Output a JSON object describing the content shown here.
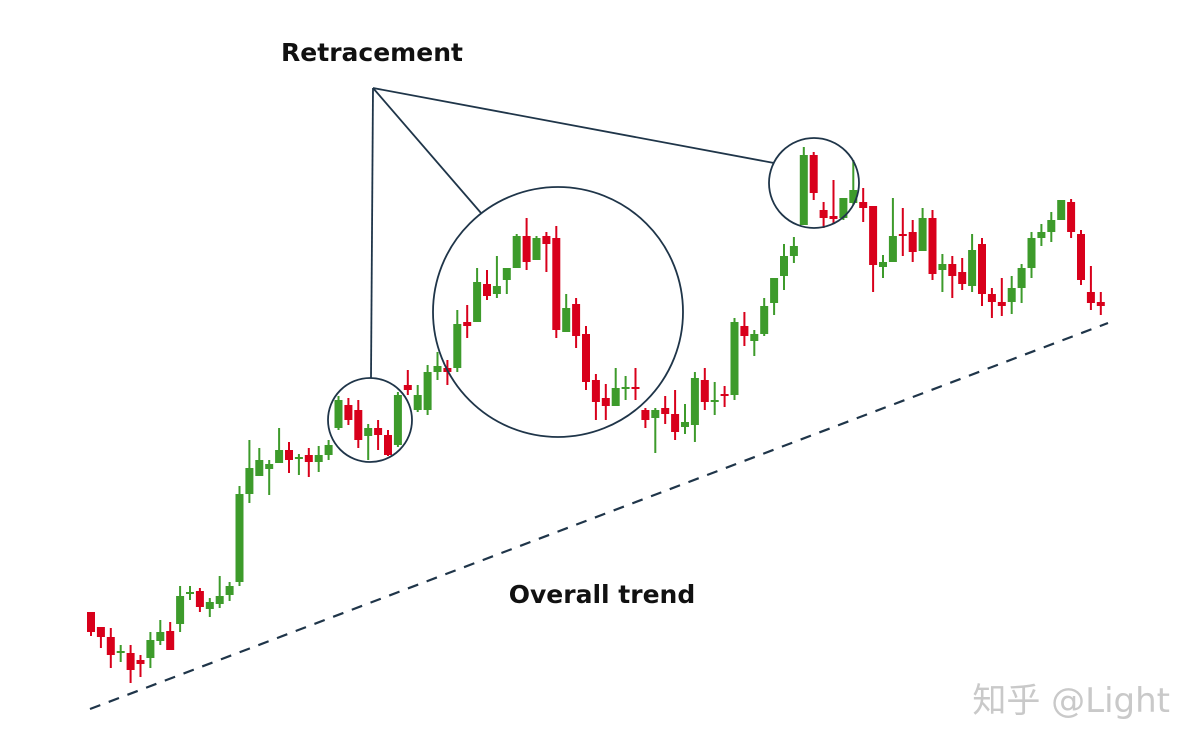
{
  "chart_data": {
    "type": "candlestick",
    "title": "",
    "xlabel": "",
    "ylabel": "",
    "grid": false,
    "colors": {
      "up": "#3d9b2b",
      "down": "#d8001b",
      "annotation": "#1f3549"
    },
    "annotations": {
      "retracement_label": "Retracement",
      "trend_label": "Overall trend",
      "retracement_highlights": [
        [
          25,
          31
        ],
        [
          37,
          55
        ],
        [
          72,
          77
        ]
      ],
      "trendline": {
        "style": "dashed"
      }
    },
    "candles_ohlc": [
      [
        88,
        88,
        64,
        68
      ],
      [
        73,
        73,
        52,
        63
      ],
      [
        63,
        72,
        32,
        45
      ],
      [
        47,
        55,
        38,
        49
      ],
      [
        47,
        55,
        17,
        30
      ],
      [
        40,
        45,
        23,
        36
      ],
      [
        42,
        68,
        32,
        60
      ],
      [
        59,
        80,
        55,
        68
      ],
      [
        69,
        78,
        50,
        50
      ],
      [
        76,
        114,
        68,
        104
      ],
      [
        106,
        114,
        100,
        108
      ],
      [
        109,
        112,
        88,
        93
      ],
      [
        91,
        102,
        83,
        98
      ],
      [
        96,
        124,
        92,
        104
      ],
      [
        105,
        118,
        99,
        114
      ],
      [
        118,
        214,
        114,
        206
      ],
      [
        206,
        260,
        197,
        232
      ],
      [
        224,
        252,
        224,
        240
      ],
      [
        231,
        240,
        205,
        236
      ],
      [
        237,
        272,
        237,
        250
      ],
      [
        250,
        258,
        227,
        240
      ],
      [
        241,
        246,
        225,
        243
      ],
      [
        245,
        252,
        223,
        238
      ],
      [
        238,
        254,
        228,
        245
      ],
      [
        245,
        260,
        240,
        255
      ],
      [
        272,
        304,
        270,
        300
      ],
      [
        295,
        302,
        275,
        280
      ],
      [
        290,
        300,
        252,
        260
      ],
      [
        264,
        276,
        240,
        272
      ],
      [
        272,
        280,
        250,
        265
      ],
      [
        265,
        270,
        244,
        245
      ],
      [
        255,
        308,
        253,
        305
      ],
      [
        315,
        330,
        305,
        310
      ],
      [
        290,
        315,
        288,
        305
      ],
      [
        290,
        335,
        285,
        328
      ],
      [
        328,
        348,
        320,
        334
      ],
      [
        332,
        340,
        315,
        328
      ],
      [
        332,
        390,
        328,
        376
      ],
      [
        378,
        395,
        362,
        374
      ],
      [
        378,
        432,
        378,
        418
      ],
      [
        416,
        430,
        400,
        404
      ],
      [
        406,
        444,
        402,
        414
      ],
      [
        420,
        432,
        406,
        432
      ],
      [
        432,
        466,
        432,
        464
      ],
      [
        464,
        482,
        430,
        438
      ],
      [
        440,
        464,
        440,
        462
      ],
      [
        464,
        468,
        428,
        456
      ],
      [
        462,
        474,
        362,
        370
      ],
      [
        368,
        406,
        368,
        392
      ],
      [
        396,
        402,
        352,
        364
      ],
      [
        366,
        374,
        310,
        318
      ],
      [
        320,
        326,
        280,
        298
      ],
      [
        302,
        316,
        280,
        294
      ],
      [
        294,
        332,
        294,
        312
      ],
      [
        311,
        324,
        300,
        313
      ],
      [
        313,
        332,
        300,
        311
      ],
      [
        290,
        292,
        272,
        280
      ],
      [
        282,
        292,
        247,
        290
      ],
      [
        292,
        304,
        276,
        286
      ],
      [
        286,
        310,
        260,
        268
      ],
      [
        273,
        296,
        266,
        278
      ],
      [
        275,
        328,
        258,
        322
      ],
      [
        320,
        332,
        290,
        298
      ],
      [
        298,
        318,
        285,
        300
      ],
      [
        306,
        314,
        293,
        304
      ],
      [
        305,
        382,
        300,
        378
      ],
      [
        374,
        388,
        354,
        364
      ],
      [
        359,
        370,
        344,
        366
      ],
      [
        366,
        402,
        364,
        394
      ],
      [
        397,
        422,
        385,
        422
      ],
      [
        424,
        456,
        410,
        444
      ],
      [
        444,
        463,
        437,
        454
      ],
      [
        475,
        553,
        475,
        545
      ],
      [
        545,
        548,
        500,
        507
      ],
      [
        490,
        498,
        472,
        482
      ],
      [
        484,
        520,
        476,
        481
      ],
      [
        482,
        502,
        480,
        502
      ],
      [
        497,
        540,
        495,
        510
      ],
      [
        498,
        512,
        478,
        492
      ],
      [
        494,
        494,
        408,
        435
      ],
      [
        433,
        445,
        422,
        438
      ],
      [
        438,
        502,
        438,
        464
      ],
      [
        466,
        492,
        444,
        464
      ],
      [
        468,
        480,
        438,
        448
      ],
      [
        449,
        492,
        449,
        482
      ],
      [
        482,
        490,
        420,
        426
      ],
      [
        430,
        446,
        408,
        436
      ],
      [
        436,
        444,
        402,
        424
      ],
      [
        428,
        442,
        410,
        416
      ],
      [
        414,
        466,
        408,
        450
      ],
      [
        456,
        462,
        394,
        406
      ],
      [
        406,
        412,
        382,
        398
      ],
      [
        398,
        422,
        384,
        394
      ],
      [
        398,
        424,
        386,
        412
      ],
      [
        412,
        436,
        397,
        432
      ],
      [
        432,
        468,
        422,
        462
      ],
      [
        462,
        476,
        454,
        468
      ],
      [
        468,
        488,
        458,
        480
      ],
      [
        480,
        500,
        480,
        500
      ],
      [
        498,
        501,
        462,
        468
      ],
      [
        466,
        470,
        415,
        420
      ],
      [
        408,
        434,
        390,
        397
      ],
      [
        398,
        408,
        385,
        394
      ]
    ]
  },
  "watermark": "知乎 @Light"
}
